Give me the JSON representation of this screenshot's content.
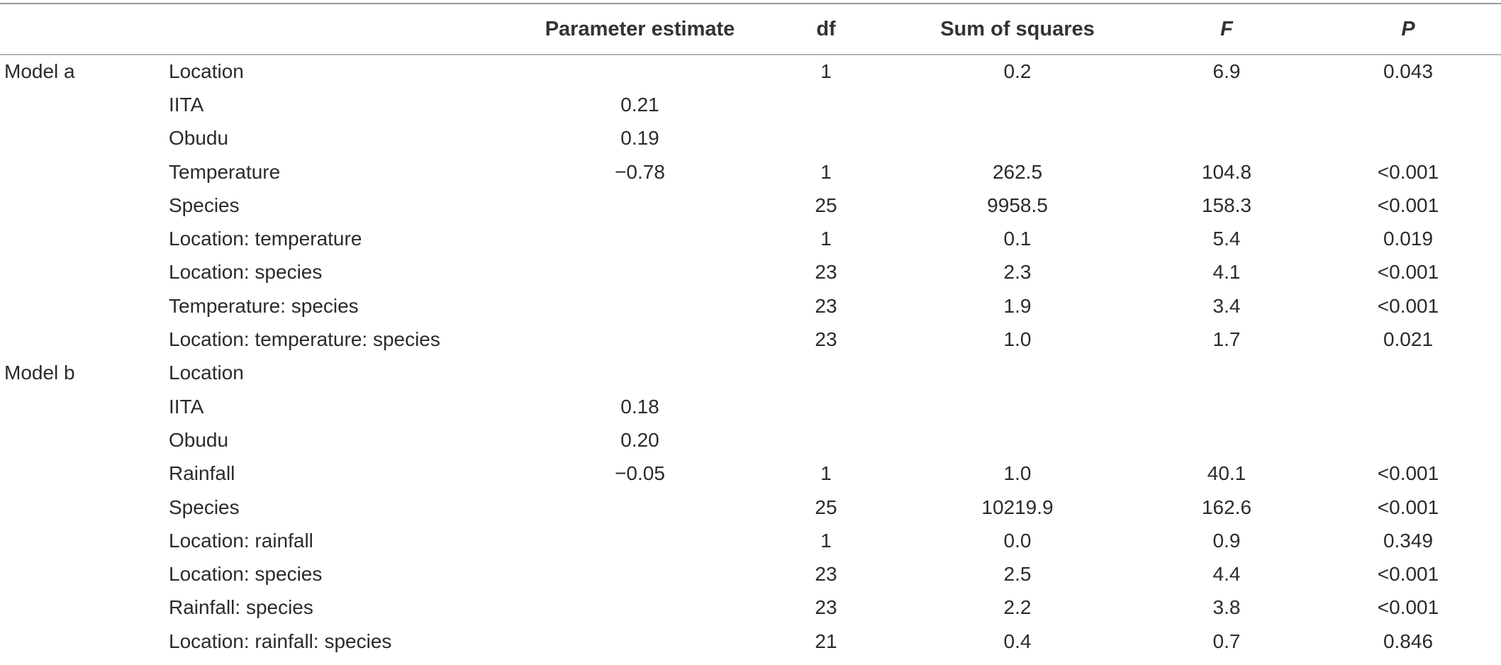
{
  "headers": {
    "model": "",
    "term": "",
    "param": "Parameter estimate",
    "df": "df",
    "ss": "Sum of squares",
    "f": "F",
    "p": "P"
  },
  "rows": [
    {
      "model": "Model a",
      "term": "Location",
      "param": "",
      "df": "1",
      "ss": "0.2",
      "f": "6.9",
      "p": "0.043"
    },
    {
      "model": "",
      "term": "IITA",
      "param": "0.21",
      "df": "",
      "ss": "",
      "f": "",
      "p": ""
    },
    {
      "model": "",
      "term": "Obudu",
      "param": "0.19",
      "df": "",
      "ss": "",
      "f": "",
      "p": ""
    },
    {
      "model": "",
      "term": "Temperature",
      "param": "−0.78",
      "df": "1",
      "ss": "262.5",
      "f": "104.8",
      "p": "<0.001"
    },
    {
      "model": "",
      "term": "Species",
      "param": "",
      "df": "25",
      "ss": "9958.5",
      "f": "158.3",
      "p": "<0.001"
    },
    {
      "model": "",
      "term": "Location: temperature",
      "param": "",
      "df": "1",
      "ss": "0.1",
      "f": "5.4",
      "p": "0.019"
    },
    {
      "model": "",
      "term": "Location: species",
      "param": "",
      "df": "23",
      "ss": "2.3",
      "f": "4.1",
      "p": "<0.001"
    },
    {
      "model": "",
      "term": "Temperature: species",
      "param": "",
      "df": "23",
      "ss": "1.9",
      "f": "3.4",
      "p": "<0.001"
    },
    {
      "model": "",
      "term": "Location: temperature: species",
      "param": "",
      "df": "23",
      "ss": "1.0",
      "f": "1.7",
      "p": "0.021"
    },
    {
      "model": "Model b",
      "term": "Location",
      "param": "",
      "df": "",
      "ss": "",
      "f": "",
      "p": ""
    },
    {
      "model": "",
      "term": "IITA",
      "param": "0.18",
      "df": "",
      "ss": "",
      "f": "",
      "p": ""
    },
    {
      "model": "",
      "term": "Obudu",
      "param": "0.20",
      "df": "",
      "ss": "",
      "f": "",
      "p": ""
    },
    {
      "model": "",
      "term": "Rainfall",
      "param": "−0.05",
      "df": "1",
      "ss": "1.0",
      "f": "40.1",
      "p": "<0.001"
    },
    {
      "model": "",
      "term": "Species",
      "param": "",
      "df": "25",
      "ss": "10219.9",
      "f": "162.6",
      "p": "<0.001"
    },
    {
      "model": "",
      "term": "Location: rainfall",
      "param": "",
      "df": "1",
      "ss": "0.0",
      "f": "0.9",
      "p": "0.349"
    },
    {
      "model": "",
      "term": "Location: species",
      "param": "",
      "df": "23",
      "ss": "2.5",
      "f": "4.4",
      "p": "<0.001"
    },
    {
      "model": "",
      "term": "Rainfall: species",
      "param": "",
      "df": "23",
      "ss": "2.2",
      "f": "3.8",
      "p": "<0.001"
    },
    {
      "model": "",
      "term": "Location: rainfall: species",
      "param": "",
      "df": "21",
      "ss": "0.4",
      "f": "0.7",
      "p": "0.846"
    }
  ]
}
